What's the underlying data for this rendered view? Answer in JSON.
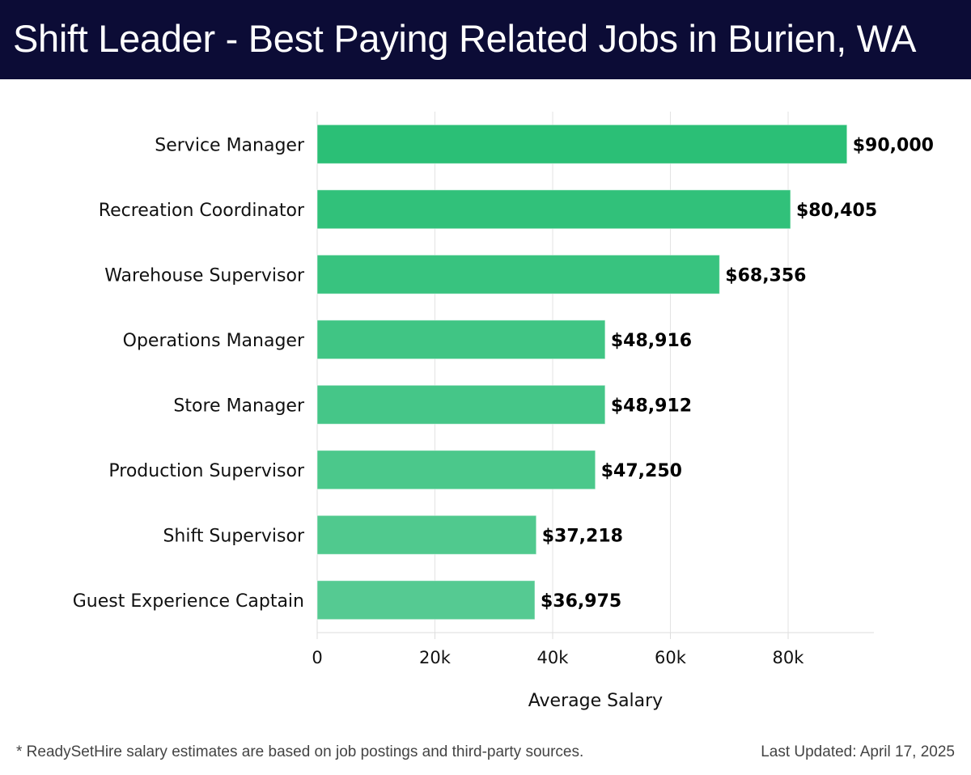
{
  "header": {
    "title": "Shift Leader - Best Paying Related Jobs in Burien, WA"
  },
  "footer": {
    "note": "* ReadySetHire salary estimates are based on job postings and third-party sources.",
    "last_updated": "Last Updated: April 17, 2025"
  },
  "chart_data": {
    "type": "bar",
    "orientation": "horizontal",
    "title": "Shift Leader - Best Paying Related Jobs in Burien, WA",
    "xlabel": "Average Salary",
    "ylabel": "",
    "xlim": [
      0,
      95000
    ],
    "grid": true,
    "x_ticks": [
      0,
      20000,
      40000,
      60000,
      80000
    ],
    "x_tick_labels": [
      "0",
      "20k",
      "40k",
      "60k",
      "80k"
    ],
    "categories": [
      "Service Manager",
      "Recreation Coordinator",
      "Warehouse Supervisor",
      "Operations Manager",
      "Store Manager",
      "Production Supervisor",
      "Shift Supervisor",
      "Guest Experience Captain"
    ],
    "values": [
      90000,
      80405,
      68356,
      48916,
      48912,
      47250,
      37218,
      36975
    ],
    "data_labels": [
      "$90,000",
      "$80,405",
      "$68,356",
      "$48,916",
      "$48,912",
      "$47,250",
      "$37,218",
      "$36,975"
    ],
    "colors": [
      "#2bbf76",
      "#31c17a",
      "#38c37f",
      "#40c584",
      "#45c688",
      "#4bc88b",
      "#50c98e",
      "#55ca92"
    ]
  }
}
